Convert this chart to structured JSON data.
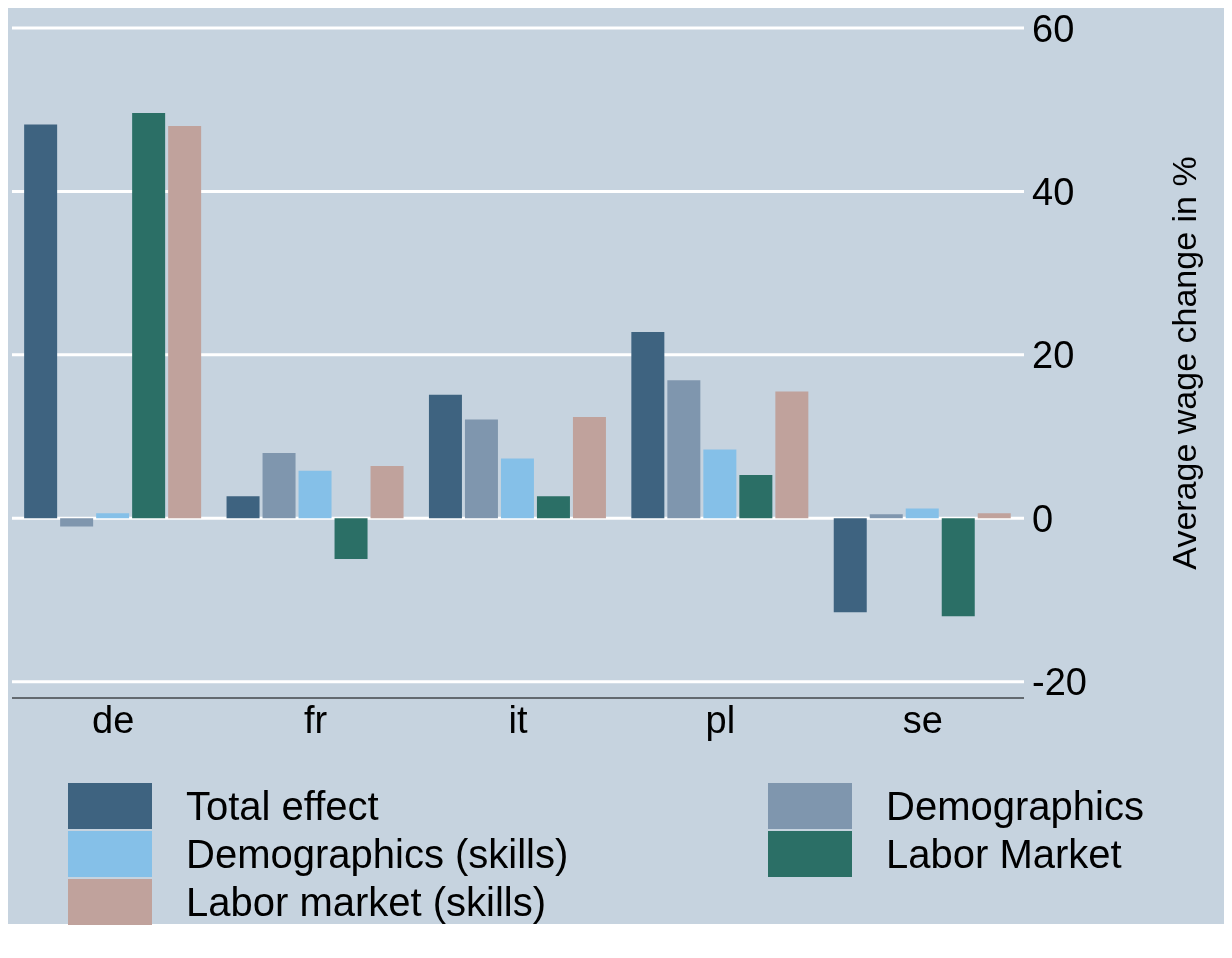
{
  "chart_data": {
    "type": "bar",
    "ylabel": "Average wage change in %",
    "categories": [
      "de",
      "fr",
      "it",
      "pl",
      "se"
    ],
    "series": [
      {
        "name": "Total effect",
        "color": "#3e6380",
        "values": [
          48.2,
          2.7,
          15.1,
          22.8,
          -11.5
        ]
      },
      {
        "name": "Demographics",
        "color": "#7f96ae",
        "values": [
          -1.0,
          8.0,
          12.1,
          16.9,
          0.5
        ]
      },
      {
        "name": "Demographics (skills)",
        "color": "#85c0e8",
        "values": [
          0.6,
          5.8,
          7.3,
          8.4,
          1.2
        ]
      },
      {
        "name": "Labor Market",
        "color": "#2b6f66",
        "values": [
          49.6,
          -5.0,
          2.7,
          5.3,
          -12.0
        ]
      },
      {
        "name": "Labor market (skills)",
        "color": "#c0a29c",
        "values": [
          48.0,
          6.4,
          12.4,
          15.5,
          0.6
        ]
      }
    ],
    "ylim": [
      -22,
      60
    ],
    "yticks": [
      -20,
      0,
      20,
      40,
      60
    ],
    "grid": "y",
    "legend": "bottom"
  }
}
